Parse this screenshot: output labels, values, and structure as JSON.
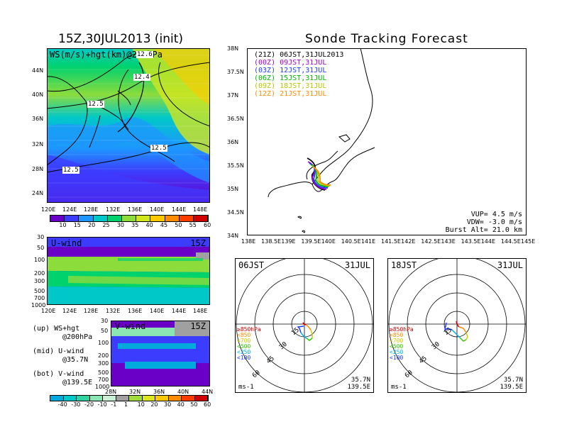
{
  "left_title": "15Z,30JUL2013 (init)",
  "right_title": "Sonde Tracking Forecast",
  "upper_map": {
    "label": "WS(m/s)+hgt(km)@200hPa",
    "lat_ticks": [
      "44N",
      "40N",
      "36N",
      "32N",
      "28N",
      "24N"
    ],
    "lon_ticks": [
      "120E",
      "124E",
      "128E",
      "132E",
      "136E",
      "140E",
      "144E",
      "148E"
    ],
    "contour_labels": [
      "12.6",
      "12.4",
      "12.5",
      "12.5",
      "12.5"
    ]
  },
  "ws_colorbar": {
    "ticks": [
      "10",
      "15",
      "20",
      "25",
      "30",
      "35",
      "40",
      "45",
      "50",
      "55",
      "60"
    ],
    "colors": [
      "#6a00c8",
      "#3c3cff",
      "#1e96ff",
      "#00c8c8",
      "#00d26e",
      "#8cdc3c",
      "#d2e61e",
      "#ffc800",
      "#ff8c00",
      "#ff3c00",
      "#d20000"
    ]
  },
  "u_wind": {
    "label": "U-wind",
    "time": "15Z",
    "p_ticks": [
      "30",
      "50",
      "100",
      "200",
      "300",
      "500",
      "700",
      "1000"
    ],
    "lon_ticks": [
      "120E",
      "124E",
      "128E",
      "132E",
      "136E",
      "140E",
      "144E",
      "148E"
    ]
  },
  "v_wind": {
    "label": "V-wind",
    "time": "15Z",
    "p_ticks": [
      "30",
      "50",
      "100",
      "200",
      "300",
      "500",
      "700",
      "1000"
    ],
    "lat_ticks": [
      "28N",
      "32N",
      "36N",
      "40N",
      "44N"
    ]
  },
  "legend_notes": [
    {
      "a": "(up) WS+hgt",
      "b": "@200hPa"
    },
    {
      "a": "(mid) U-wind",
      "b": "@35.7N"
    },
    {
      "a": "(bot) V-wind",
      "b": "@139.5E"
    }
  ],
  "wind_colorbar": {
    "ticks": [
      "-40",
      "-30",
      "-20",
      "-10",
      "-1",
      "1",
      "10",
      "20",
      "30",
      "40",
      "50",
      "60"
    ],
    "colors": [
      "#00aadc",
      "#00c8c8",
      "#32d2a0",
      "#8ce6b4",
      "#c8f0d2",
      "#a0a0a0",
      "#a0dc3c",
      "#dce61e",
      "#ffc800",
      "#ff8c00",
      "#ff3c00",
      "#d20000"
    ]
  },
  "tracking_map": {
    "launches": [
      {
        "text": "(21Z) 06JST,31JUL2013",
        "color": "#000000"
      },
      {
        "text": "(00Z) 09JST,31JUL",
        "color": "#a000c8"
      },
      {
        "text": "(03Z) 12JST,31JUL",
        "color": "#1e3cff"
      },
      {
        "text": "(06Z) 15JST,31JUL",
        "color": "#00b400"
      },
      {
        "text": "(09Z) 18JST,31JUL",
        "color": "#b4c800"
      },
      {
        "text": "(12Z) 21JST,31JUL",
        "color": "#ff8c00"
      }
    ],
    "lat_ticks": [
      "38N",
      "37.5N",
      "37N",
      "36.5N",
      "36N",
      "35.5N",
      "35N",
      "34.5N",
      "34N"
    ],
    "lon_ticks": [
      "138E",
      "138.5E",
      "139E",
      "139.5E",
      "140E",
      "140.5E",
      "141E",
      "141.5E",
      "142E",
      "142.5E",
      "143E",
      "143.5E",
      "144E",
      "144.5E",
      "145E"
    ],
    "info": [
      "VUP= 4.5 m/s",
      "VDW= -3.0 m/s",
      "Burst Alt= 21.0 km"
    ]
  },
  "hodographs": [
    {
      "time": "06JST",
      "date": "31JUL",
      "lat": "35.7N",
      "lon": "139.5E",
      "unit": "ms-1",
      "rings": [
        "15",
        "30",
        "45",
        "60"
      ],
      "levels": [
        {
          "text": "≥850hPa",
          "color": "#d20000"
        },
        {
          "text": "<850",
          "color": "#ff8c00"
        },
        {
          "text": "<700",
          "color": "#d2c800"
        },
        {
          "text": "<500",
          "color": "#32c800"
        },
        {
          "text": "<250",
          "color": "#00b4dc"
        },
        {
          "text": "<100",
          "color": "#1e3cff"
        }
      ]
    },
    {
      "time": "18JST",
      "date": "31JUL",
      "lat": "35.7N",
      "lon": "139.5E",
      "unit": "ms-1",
      "rings": [
        "15",
        "30",
        "45",
        "60"
      ],
      "levels": [
        {
          "text": "≥850hPa",
          "color": "#d20000"
        },
        {
          "text": "<850",
          "color": "#ff8c00"
        },
        {
          "text": "<700",
          "color": "#d2c800"
        },
        {
          "text": "<500",
          "color": "#32c800"
        },
        {
          "text": "<250",
          "color": "#00b4dc"
        },
        {
          "text": "<100",
          "color": "#1e3cff"
        }
      ]
    }
  ]
}
